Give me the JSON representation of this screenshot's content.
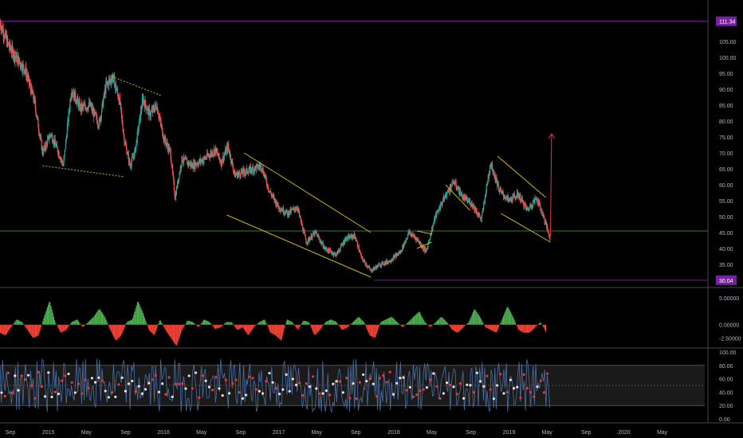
{
  "chart_data": [
    {
      "type": "candlestick",
      "title": "",
      "price_axis": {
        "range": [
          28,
          118
        ],
        "ticks": [
          "105.00",
          "100.00",
          "95.00",
          "90.00",
          "85.00",
          "80.00",
          "75.00",
          "70.00",
          "65.00",
          "60.00",
          "55.00",
          "50.00",
          "45.00",
          "40.00",
          "35.00"
        ],
        "tick_values": [
          105,
          100,
          95,
          90,
          85,
          80,
          75,
          70,
          65,
          60,
          55,
          50,
          45,
          40,
          35
        ]
      },
      "price_labels": [
        {
          "text": "111.34",
          "value": 111.34,
          "color": "#7b1fa2"
        },
        {
          "text": "30.04",
          "value": 30.04,
          "color": "#7b1fa2"
        }
      ],
      "horizontal_lines": [
        {
          "value": 111.34,
          "color": "#7b1fa2"
        },
        {
          "value": 45.5,
          "color": "#2e7d32"
        },
        {
          "value": 30.04,
          "color": "#7b1fa2",
          "from": 2017.83
        }
      ],
      "price_path": [
        [
          2014.58,
          111
        ],
        [
          2014.65,
          104
        ],
        [
          2014.72,
          100
        ],
        [
          2014.8,
          96
        ],
        [
          2014.88,
          86
        ],
        [
          2014.95,
          70
        ],
        [
          2015.02,
          76
        ],
        [
          2015.08,
          71
        ],
        [
          2015.13,
          66
        ],
        [
          2015.2,
          90
        ],
        [
          2015.28,
          84
        ],
        [
          2015.36,
          85
        ],
        [
          2015.44,
          79
        ],
        [
          2015.5,
          91
        ],
        [
          2015.56,
          94
        ],
        [
          2015.62,
          86
        ],
        [
          2015.66,
          74
        ],
        [
          2015.71,
          66
        ],
        [
          2015.75,
          70
        ],
        [
          2015.82,
          87
        ],
        [
          2015.88,
          82
        ],
        [
          2015.94,
          85
        ],
        [
          2016.0,
          75
        ],
        [
          2016.06,
          70
        ],
        [
          2016.1,
          56
        ],
        [
          2016.16,
          68
        ],
        [
          2016.25,
          66
        ],
        [
          2016.35,
          68
        ],
        [
          2016.45,
          71
        ],
        [
          2016.5,
          67
        ],
        [
          2016.56,
          72
        ],
        [
          2016.62,
          63
        ],
        [
          2016.7,
          64
        ],
        [
          2016.78,
          65
        ],
        [
          2016.85,
          66
        ],
        [
          2016.92,
          58
        ],
        [
          2017.0,
          53
        ],
        [
          2017.08,
          51
        ],
        [
          2017.16,
          53
        ],
        [
          2017.24,
          42
        ],
        [
          2017.32,
          45
        ],
        [
          2017.4,
          40
        ],
        [
          2017.5,
          38
        ],
        [
          2017.58,
          43
        ],
        [
          2017.66,
          44
        ],
        [
          2017.72,
          37
        ],
        [
          2017.8,
          33
        ],
        [
          2017.88,
          35
        ],
        [
          2017.96,
          36
        ],
        [
          2018.06,
          39
        ],
        [
          2018.13,
          45
        ],
        [
          2018.2,
          43
        ],
        [
          2018.28,
          39
        ],
        [
          2018.36,
          50
        ],
        [
          2018.44,
          56
        ],
        [
          2018.52,
          61
        ],
        [
          2018.6,
          56
        ],
        [
          2018.68,
          54
        ],
        [
          2018.76,
          49
        ],
        [
          2018.84,
          67
        ],
        [
          2018.92,
          58
        ],
        [
          2019.0,
          55
        ],
        [
          2019.08,
          57
        ],
        [
          2019.16,
          52
        ],
        [
          2019.24,
          56
        ],
        [
          2019.3,
          50
        ],
        [
          2019.36,
          43
        ]
      ],
      "trendlines": [
        {
          "color": "#c8b900",
          "dashed": true,
          "points": [
            [
              2014.95,
              66
            ],
            [
              2015.66,
              62.5
            ]
          ]
        },
        {
          "color": "#c8b900",
          "dashed": true,
          "points": [
            [
              2015.55,
              94
            ],
            [
              2015.98,
              88
            ]
          ]
        },
        {
          "color": "#c8b900",
          "dashed": false,
          "points": [
            [
              2016.7,
              70
            ],
            [
              2017.8,
              45
            ]
          ]
        },
        {
          "color": "#c8b900",
          "dashed": false,
          "points": [
            [
              2016.55,
              50.5
            ],
            [
              2017.8,
              31
            ]
          ]
        },
        {
          "color": "#c8b900",
          "dashed": false,
          "points": [
            [
              2018.2,
              45.5
            ],
            [
              2018.33,
              44.5
            ]
          ]
        },
        {
          "color": "#c8b900",
          "dashed": false,
          "points": [
            [
              2018.2,
              40
            ],
            [
              2018.33,
              42
            ]
          ]
        },
        {
          "color": "#c8b900",
          "dashed": false,
          "points": [
            [
              2018.45,
              60
            ],
            [
              2018.66,
              52
            ]
          ]
        },
        {
          "color": "#c8b900",
          "dashed": false,
          "points": [
            [
              2018.9,
              69
            ],
            [
              2019.32,
              56
            ]
          ]
        },
        {
          "color": "#c8b900",
          "dashed": false,
          "points": [
            [
              2018.93,
              51
            ],
            [
              2019.36,
              42
            ]
          ]
        }
      ],
      "projection_arrow": {
        "color": "#e53935",
        "from": [
          2019.36,
          44
        ],
        "to": [
          2019.37,
          76
        ]
      }
    },
    {
      "type": "histogram",
      "title": "",
      "y_axis": {
        "range": [
          -4.2,
          6.8
        ],
        "ticks": [
          "5.00000",
          "0.00000",
          "-2.50000"
        ],
        "tick_values": [
          5,
          0,
          -2.5
        ]
      },
      "colors": {
        "positive": "#4caf50",
        "negative": "#f44336"
      },
      "values": [
        -1.5,
        -2.0,
        -0.5,
        1.0,
        0.5,
        -1.0,
        -2.5,
        -2.0,
        1.5,
        4.5,
        0.5,
        -1.5,
        -1.0,
        0.5,
        1.0,
        -0.5,
        0.5,
        1.5,
        3.0,
        1.5,
        -1.0,
        -3.0,
        -2.0,
        0.5,
        1.0,
        4.5,
        2.0,
        -1.0,
        -2.0,
        1.0,
        -1.0,
        -2.5,
        -4.0,
        -1.0,
        0.8,
        0.5,
        -0.5,
        1.0,
        0.5,
        -0.8,
        -0.5,
        0.5,
        0.5,
        -1.0,
        -0.5,
        -2.0,
        -0.5,
        0.5,
        1.0,
        -1.5,
        -2.0,
        -3.0,
        1.0,
        0.5,
        -1.0,
        0.8,
        0.5,
        -2.0,
        -1.0,
        0.5,
        1.0,
        0.5,
        -1.0,
        -0.5,
        0.5,
        1.5,
        0.5,
        -2.0,
        -2.5,
        0.5,
        1.0,
        1.5,
        0.5,
        -0.5,
        0.5,
        1.5,
        2.5,
        0.5,
        -0.5,
        0.5,
        1.5,
        0.5,
        -1.0,
        -1.5,
        -0.5,
        0.5,
        3.0,
        1.5,
        -0.5,
        -1.0,
        -1.5,
        1.0,
        3.5,
        1.5,
        -1.0,
        -1.5,
        -1.5,
        -0.5,
        0.5,
        -1.5
      ]
    },
    {
      "type": "line",
      "title": "",
      "y_axis": {
        "range": [
          0,
          100
        ],
        "ticks": [
          "100.00",
          "80.00",
          "60.00",
          "40.00",
          "20.00",
          "0.00"
        ],
        "tick_values": [
          100,
          80,
          60,
          40,
          20,
          0
        ]
      },
      "band": {
        "upper": 80,
        "lower": 20,
        "middle": 50
      },
      "colors": {
        "line": "#4a6fa5",
        "up_dot": "#e53935",
        "down_dot": "#e0e0e0"
      }
    }
  ],
  "time_axis": {
    "range": [
      2014.58,
      2020.7
    ],
    "labels": [
      "Sep",
      "2015",
      "May",
      "Sep",
      "2016",
      "May",
      "Sep",
      "2017",
      "May",
      "Sep",
      "2018",
      "May",
      "Sep",
      "2019",
      "May",
      "Sep",
      "2020",
      "May"
    ],
    "positions": [
      2014.67,
      2015.0,
      2015.33,
      2015.67,
      2016.0,
      2016.33,
      2016.67,
      2017.0,
      2017.33,
      2017.67,
      2018.0,
      2018.33,
      2018.67,
      2019.0,
      2019.33,
      2019.67,
      2020.0,
      2020.33
    ]
  }
}
